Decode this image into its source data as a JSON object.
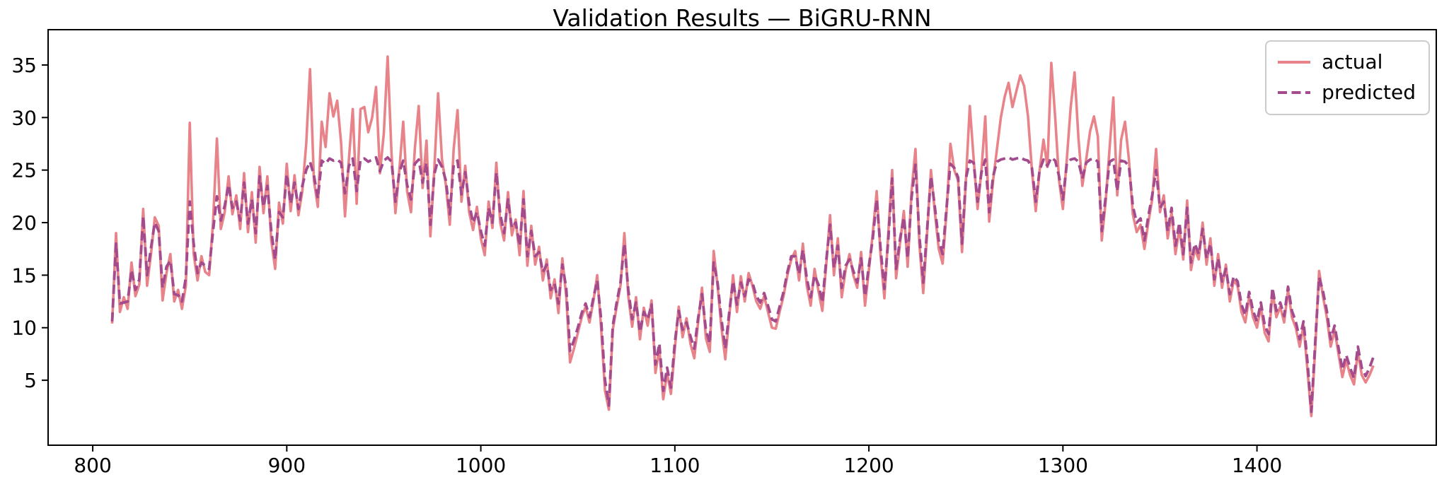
{
  "title": "Validation Results — BiGRU-RNN",
  "legend": {
    "position": "upper right",
    "items": [
      {
        "label": "actual",
        "style": "solid"
      },
      {
        "label": "predicted",
        "style": "dashed"
      }
    ]
  },
  "chart_data": {
    "type": "line",
    "title": "Validation Results — BiGRU-RNN",
    "xlabel": "",
    "ylabel": "",
    "grid": false,
    "legend_position": "upper right",
    "x_ticks": [
      800,
      900,
      1000,
      1100,
      1200,
      1300,
      1400
    ],
    "y_ticks": [
      5,
      10,
      15,
      20,
      25,
      30,
      35
    ],
    "xlim": [
      777.0,
      1492.4
    ],
    "ylim": [
      -1.18,
      38.36
    ],
    "x_start": 810,
    "x_step": 2,
    "n_points": 326,
    "series": [
      {
        "name": "actual",
        "color": "#E8838A",
        "line_style": "solid",
        "values": [
          10.4,
          19.0,
          11.5,
          12.9,
          11.8,
          16.2,
          13.0,
          14.1,
          21.3,
          14.0,
          17.0,
          20.5,
          19.7,
          12.6,
          15.2,
          17.0,
          12.5,
          13.6,
          11.8,
          14.0,
          29.5,
          17.0,
          14.5,
          16.8,
          15.3,
          15.0,
          20.0,
          28.0,
          19.4,
          21.0,
          24.4,
          20.8,
          22.6,
          19.4,
          24.7,
          19.1,
          22.9,
          18.1,
          25.3,
          20.9,
          24.4,
          18.3,
          15.6,
          21.9,
          19.9,
          25.6,
          21.1,
          24.5,
          20.7,
          23.0,
          27.5,
          34.6,
          24.0,
          21.5,
          29.6,
          27.2,
          32.3,
          30.1,
          31.6,
          27.6,
          20.6,
          26.0,
          30.8,
          21.8,
          30.8,
          31.0,
          28.6,
          30.0,
          32.9,
          24.7,
          28.5,
          35.8,
          26.5,
          20.9,
          25.0,
          29.6,
          23.0,
          21.0,
          27.0,
          31.1,
          23.3,
          27.8,
          18.7,
          25.0,
          32.3,
          26.0,
          23.6,
          19.8,
          27.0,
          30.7,
          22.0,
          25.4,
          21.0,
          19.3,
          21.5,
          18.5,
          16.9,
          22.0,
          19.5,
          25.7,
          20.0,
          18.3,
          22.9,
          18.8,
          20.3,
          16.9,
          23.0,
          15.9,
          19.7,
          16.0,
          17.7,
          14.5,
          16.5,
          12.8,
          14.6,
          11.4,
          16.6,
          13.0,
          6.7,
          8.0,
          9.5,
          11.0,
          12.0,
          10.5,
          12.5,
          15.0,
          10.0,
          4.0,
          2.2,
          9.8,
          12.0,
          14.0,
          19.0,
          13.0,
          10.1,
          12.9,
          8.9,
          11.9,
          10.2,
          12.6,
          5.7,
          8.0,
          3.2,
          5.7,
          3.7,
          8.0,
          12.0,
          9.1,
          10.9,
          8.5,
          7.1,
          10.5,
          13.8,
          9.0,
          7.7,
          17.3,
          14.0,
          10.0,
          7.0,
          11.0,
          15.0,
          11.5,
          14.9,
          12.5,
          15.2,
          14.0,
          12.5,
          11.8,
          13.0,
          11.5,
          10.0,
          9.9,
          11.5,
          13.0,
          15.0,
          16.5,
          17.3,
          14.5,
          18.0,
          14.0,
          12.1,
          15.6,
          13.5,
          11.6,
          16.0,
          20.7,
          15.0,
          18.5,
          12.9,
          15.5,
          17.0,
          15.0,
          13.8,
          17.2,
          12.1,
          15.5,
          19.0,
          23.0,
          17.0,
          12.8,
          19.0,
          25.0,
          14.7,
          18.0,
          21.1,
          15.8,
          23.0,
          27.0,
          18.0,
          13.3,
          19.0,
          25.0,
          21.0,
          17.5,
          16.1,
          21.0,
          27.5,
          25.0,
          24.0,
          17.2,
          24.0,
          31.1,
          26.0,
          21.3,
          25.0,
          30.1,
          20.1,
          24.0,
          27.0,
          30.0,
          32.0,
          33.3,
          31.0,
          32.5,
          34.0,
          33.0,
          30.1,
          25.0,
          21.1,
          25.0,
          27.9,
          25.3,
          35.2,
          30.0,
          24.0,
          21.3,
          26.0,
          31.0,
          34.3,
          28.0,
          23.5,
          26.0,
          28.7,
          30.1,
          28.2,
          18.3,
          22.0,
          27.0,
          31.9,
          22.6,
          27.9,
          29.6,
          26.0,
          20.8,
          19.1,
          19.8,
          17.5,
          20.0,
          22.2,
          27.0,
          21.0,
          22.6,
          18.5,
          21.0,
          17.0,
          19.5,
          16.5,
          22.1,
          15.5,
          17.5,
          16.5,
          20.0,
          16.0,
          18.5,
          14.0,
          17.0,
          13.8,
          16.0,
          12.5,
          14.5,
          14.0,
          11.5,
          10.5,
          13.0,
          11.0,
          10.0,
          12.0,
          9.5,
          8.7,
          13.5,
          11.0,
          12.0,
          10.5,
          13.6,
          11.0,
          10.0,
          8.2,
          10.2,
          6.0,
          1.6,
          8.0,
          15.4,
          13.0,
          11.0,
          8.2,
          9.8,
          7.5,
          5.3,
          6.9,
          5.5,
          4.6,
          7.7,
          5.5,
          4.8,
          5.5,
          6.4
        ]
      },
      {
        "name": "predicted",
        "color": "#A34B8D",
        "line_style": "dashed",
        "values": [
          10.6,
          18.0,
          12.3,
          12.4,
          12.5,
          15.5,
          13.6,
          14.6,
          20.6,
          15.0,
          17.6,
          20.0,
          19.2,
          13.8,
          15.8,
          16.4,
          13.2,
          13.1,
          12.5,
          14.8,
          22.0,
          18.0,
          15.2,
          16.2,
          15.9,
          15.6,
          19.2,
          22.5,
          20.2,
          21.6,
          23.6,
          21.4,
          22.0,
          20.2,
          23.8,
          19.9,
          22.2,
          19.0,
          24.4,
          21.5,
          23.5,
          19.2,
          16.5,
          21.0,
          20.5,
          24.6,
          21.8,
          23.8,
          21.3,
          23.5,
          25.0,
          25.8,
          24.5,
          22.3,
          25.9,
          25.6,
          26.1,
          25.9,
          26.0,
          25.7,
          22.8,
          25.4,
          26.1,
          23.0,
          26.0,
          26.1,
          25.8,
          26.0,
          26.2,
          24.9,
          25.9,
          26.2,
          25.8,
          22.0,
          24.8,
          25.9,
          23.6,
          22.2,
          25.6,
          26.0,
          23.8,
          25.7,
          19.8,
          24.6,
          26.0,
          25.3,
          24.0,
          20.8,
          25.5,
          25.9,
          22.7,
          24.8,
          21.8,
          20.0,
          21.0,
          19.2,
          17.8,
          21.4,
          20.0,
          24.8,
          20.8,
          19.0,
          22.2,
          19.5,
          20.0,
          17.8,
          22.2,
          16.8,
          19.2,
          16.8,
          17.2,
          15.3,
          16.0,
          13.6,
          14.2,
          12.3,
          16.0,
          13.8,
          7.8,
          8.8,
          10.0,
          11.4,
          12.3,
          11.0,
          12.8,
          14.5,
          10.8,
          5.0,
          2.6,
          10.2,
          12.4,
          14.3,
          18.0,
          13.6,
          10.8,
          12.4,
          9.6,
          11.5,
          10.8,
          12.2,
          6.5,
          8.5,
          4.0,
          6.2,
          4.3,
          8.6,
          11.6,
          9.8,
          10.5,
          9.2,
          8.0,
          10.9,
          13.2,
          9.8,
          8.5,
          16.2,
          14.3,
          10.8,
          8.0,
          11.4,
          14.4,
          12.2,
          14.3,
          13.0,
          14.6,
          14.3,
          13.0,
          12.4,
          13.3,
          12.1,
          10.8,
          10.6,
          12.0,
          13.4,
          15.3,
          16.8,
          16.8,
          15.1,
          17.4,
          14.7,
          12.9,
          15.0,
          14.1,
          12.4,
          16.4,
          19.8,
          15.7,
          17.8,
          13.8,
          15.9,
          16.5,
          15.4,
          14.3,
          16.6,
          13.0,
          15.9,
          18.5,
          22.2,
          17.6,
          13.7,
          18.4,
          24.2,
          15.6,
          18.4,
          20.5,
          16.6,
          22.4,
          25.5,
          18.8,
          14.3,
          19.4,
          24.4,
          21.5,
          18.3,
          17.0,
          21.4,
          25.6,
          25.2,
          24.3,
          18.0,
          24.2,
          25.9,
          25.7,
          22.0,
          24.8,
          26.0,
          21.0,
          24.4,
          25.8,
          26.0,
          26.1,
          26.2,
          26.0,
          26.1,
          26.2,
          26.0,
          25.9,
          25.2,
          22.0,
          25.0,
          26.0,
          25.4,
          26.2,
          25.9,
          24.4,
          22.2,
          25.6,
          26.0,
          26.1,
          25.8,
          24.2,
          25.7,
          26.0,
          26.1,
          25.8,
          19.2,
          22.4,
          25.8,
          26.0,
          23.0,
          25.9,
          25.8,
          25.4,
          21.6,
          20.0,
          20.4,
          18.3,
          20.6,
          22.6,
          25.0,
          21.4,
          22.0,
          19.2,
          21.4,
          17.8,
          20.0,
          17.0,
          21.4,
          16.2,
          18.0,
          17.0,
          19.4,
          16.6,
          18.0,
          14.6,
          16.6,
          14.4,
          15.6,
          13.2,
          14.9,
          14.4,
          12.2,
          11.2,
          13.4,
          11.6,
          10.6,
          12.4,
          10.2,
          9.4,
          13.8,
          11.6,
          12.4,
          11.1,
          13.9,
          11.6,
          10.6,
          8.9,
          10.6,
          6.8,
          2.0,
          8.6,
          14.8,
          13.5,
          11.6,
          8.9,
          10.2,
          8.1,
          6.0,
          7.4,
          6.2,
          5.2,
          8.2,
          6.2,
          5.4,
          6.2,
          7.2
        ]
      }
    ]
  }
}
